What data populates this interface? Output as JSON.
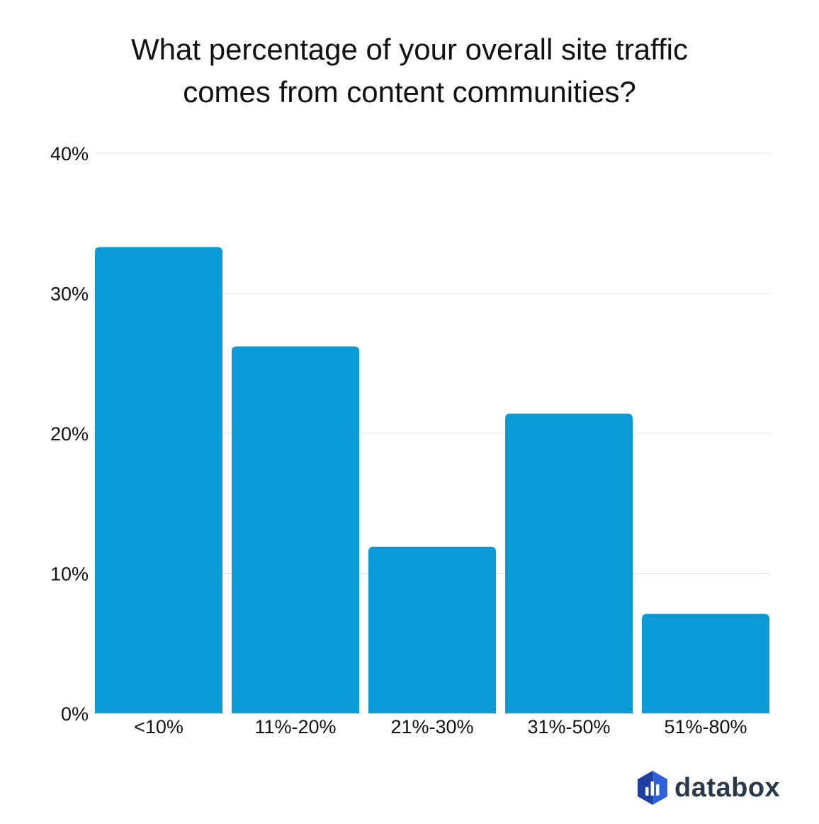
{
  "chart_data": {
    "type": "bar",
    "title_lines": [
      "What percentage of your overall site traffic",
      "comes from content communities?"
    ],
    "categories": [
      "<10%",
      "11%-20%",
      "21%-30%",
      "31%-50%",
      "51%-80%"
    ],
    "values": [
      33.3,
      26.2,
      11.9,
      21.4,
      7.1
    ],
    "ylim": [
      0,
      40
    ],
    "yticks": [
      0,
      10,
      20,
      30,
      40
    ],
    "ytick_labels": [
      "0%",
      "10%",
      "20%",
      "30%",
      "40%"
    ],
    "grid": true,
    "bar_color": "#0a9bd6"
  },
  "branding": {
    "logo_text": "databox",
    "logo_icon": "databox-logo-icon",
    "logo_colors": [
      "#1e3f9e",
      "#2f62d8"
    ]
  }
}
